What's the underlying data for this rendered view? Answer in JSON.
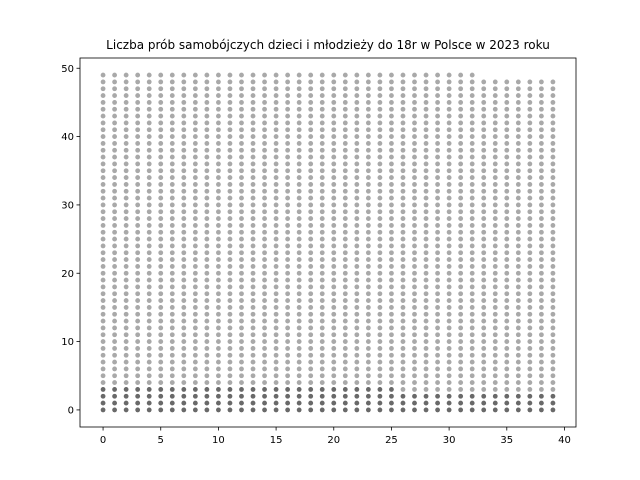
{
  "chart_data": {
    "type": "scatter",
    "title": "Liczba prób samobójczych dzieci i młodzieży do 18r w Polsce w 2023 roku",
    "xlabel": "",
    "ylabel": "",
    "xlim": [
      -2,
      41
    ],
    "ylim": [
      -2.5,
      51.5
    ],
    "xticks": [
      0,
      5,
      10,
      15,
      20,
      25,
      30,
      35,
      40
    ],
    "yticks": [
      0,
      10,
      20,
      30,
      40,
      50
    ],
    "grid": false,
    "colors": {
      "light": "#a9a9a9",
      "dark": "#696969"
    },
    "columns": {
      "x": [
        0,
        1,
        2,
        3,
        4,
        5,
        6,
        7,
        8,
        9,
        10,
        11,
        12,
        13,
        14,
        15,
        16,
        17,
        18,
        19,
        20,
        21,
        22,
        23,
        24,
        25,
        26,
        27,
        28,
        29,
        30,
        31,
        32,
        33,
        34,
        35,
        36,
        37,
        38,
        39
      ],
      "light_top": [
        49,
        49,
        49,
        49,
        49,
        49,
        49,
        49,
        49,
        49,
        49,
        49,
        49,
        49,
        49,
        49,
        49,
        49,
        49,
        49,
        49,
        49,
        49,
        49,
        49,
        49,
        49,
        49,
        49,
        49,
        49,
        49,
        49,
        48,
        48,
        48,
        48,
        48,
        48,
        48
      ],
      "dark_top": [
        3,
        3,
        3,
        3,
        3,
        3,
        3,
        3,
        3,
        3,
        3,
        3,
        3,
        3,
        3,
        3,
        3,
        3,
        3,
        3,
        3,
        3,
        3,
        3,
        3,
        3,
        2,
        2,
        2,
        2,
        2,
        2,
        2,
        2,
        2,
        2,
        2,
        2,
        2,
        2
      ]
    }
  }
}
